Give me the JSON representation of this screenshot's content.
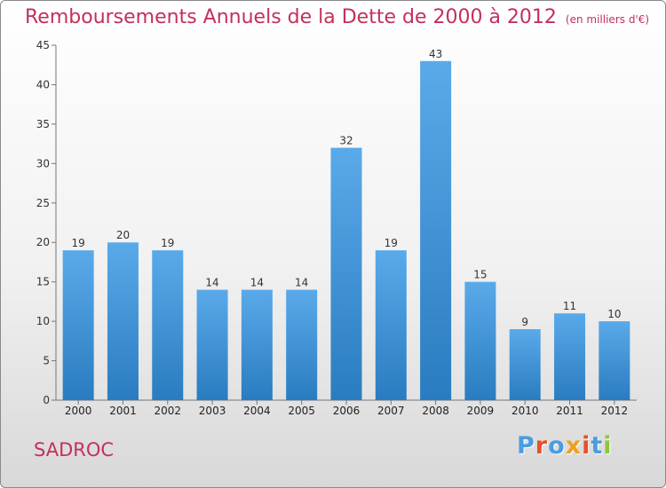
{
  "title": "Remboursements Annuels de la Dette de 2000 à 2012",
  "subtitle": "(en milliers d'€)",
  "place": "SADROC",
  "logo": "Proxiti",
  "colors": {
    "title": "#c4305a",
    "bar_top": "#5aaaea",
    "bar_bottom": "#2a7cc0",
    "logo_letters": [
      "#4a9de0",
      "#e8502a",
      "#4a9de0",
      "#f0a020",
      "#e8502a",
      "#4a9de0",
      "#8cc63e"
    ]
  },
  "chart_data": {
    "type": "bar",
    "categories": [
      "2000",
      "2001",
      "2002",
      "2003",
      "2004",
      "2005",
      "2006",
      "2007",
      "2008",
      "2009",
      "2010",
      "2011",
      "2012"
    ],
    "values": [
      19,
      20,
      19,
      14,
      14,
      14,
      32,
      19,
      43,
      15,
      9,
      11,
      10
    ],
    "ylim": [
      0,
      45
    ],
    "yticks": [
      0,
      5,
      10,
      15,
      20,
      25,
      30,
      35,
      40,
      45
    ],
    "grid": false,
    "data_labels": true
  }
}
